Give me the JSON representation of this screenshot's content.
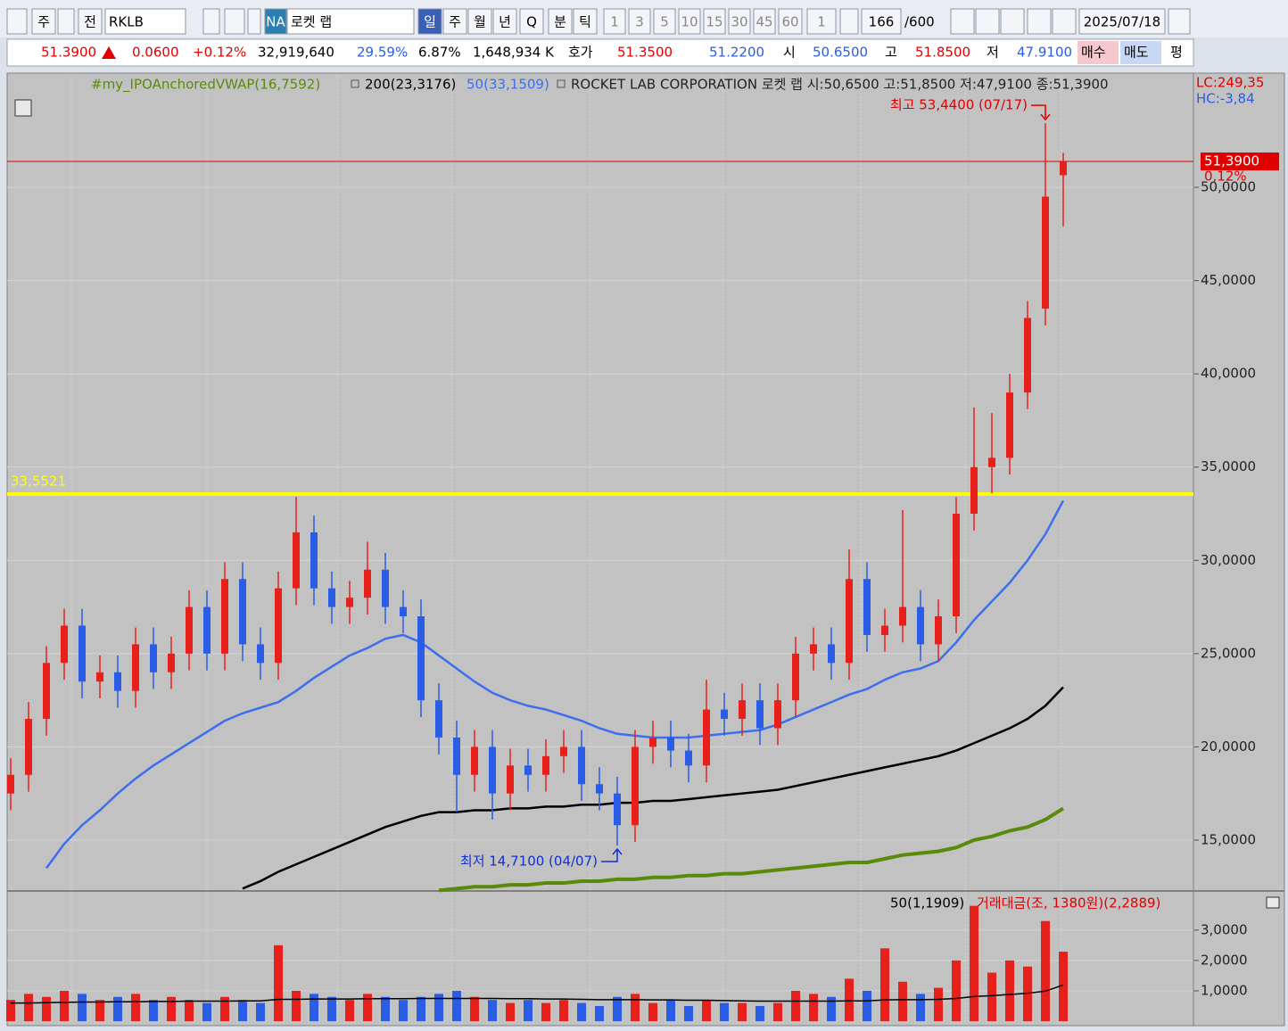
{
  "toolbar": {
    "items": [
      "주",
      "전",
      "RKLB",
      "NA",
      "로켓 랩",
      "일",
      "주",
      "월",
      "년",
      "Q",
      "분",
      "틱",
      "1",
      "3",
      "5",
      "10",
      "15",
      "30",
      "45",
      "60",
      "1",
      "166",
      "/600",
      "2025/07/18"
    ]
  },
  "quote_bar": {
    "items": [
      "51.3900",
      "0.0600",
      "+0.12%",
      "32,919,640",
      "29.59%",
      "6.87%",
      "1,648,934 K",
      "호가",
      "51.3500",
      "51.2200",
      "시",
      "50.6500",
      "고",
      "51.8500",
      "저",
      "47.9100",
      "매수",
      "매도",
      "평"
    ]
  },
  "chart_data": {
    "type": "candlestick",
    "grid": true,
    "up_color": "#e8201c",
    "down_color": "#2a5ce6",
    "open": [
      17.5,
      18.5,
      21.5,
      24.5,
      26.5,
      23.5,
      24.0,
      23.0,
      25.5,
      24.0,
      25.0,
      27.5,
      25.0,
      29.0,
      25.5,
      24.5,
      28.5,
      31.5,
      28.5,
      27.5,
      28.0,
      29.5,
      27.5,
      27.0,
      22.5,
      20.5,
      18.5,
      20.0,
      17.5,
      19.0,
      18.5,
      19.5,
      20.0,
      18.0,
      17.5,
      15.8,
      20.0,
      20.5,
      19.8,
      19.0,
      22.0,
      21.5,
      22.5,
      21.0,
      22.5,
      25.0,
      25.5,
      24.5,
      29.0,
      26.0,
      26.5,
      27.5,
      25.5,
      27.0,
      32.5,
      35.0,
      35.5,
      39.0,
      43.5,
      50.65
    ],
    "high": [
      19.4,
      22.4,
      25.4,
      27.4,
      27.4,
      24.9,
      24.9,
      26.4,
      26.4,
      25.9,
      28.4,
      28.4,
      29.9,
      29.9,
      26.4,
      29.4,
      33.4,
      32.4,
      29.4,
      28.9,
      31.0,
      30.4,
      28.4,
      27.9,
      23.4,
      21.4,
      20.9,
      20.9,
      19.9,
      19.9,
      20.4,
      20.9,
      20.9,
      18.9,
      18.4,
      20.9,
      21.4,
      21.4,
      20.7,
      23.6,
      22.9,
      23.4,
      23.4,
      23.4,
      25.9,
      26.4,
      26.4,
      30.6,
      29.9,
      27.4,
      32.7,
      28.4,
      27.9,
      33.4,
      38.2,
      37.9,
      40.0,
      43.9,
      53.44,
      51.85
    ],
    "low": [
      16.6,
      17.6,
      20.6,
      23.6,
      22.6,
      22.6,
      22.1,
      22.1,
      23.1,
      23.1,
      24.1,
      24.1,
      24.1,
      24.6,
      23.6,
      23.6,
      27.6,
      27.6,
      26.6,
      26.6,
      27.1,
      26.6,
      26.1,
      21.6,
      19.6,
      16.5,
      17.6,
      16.1,
      16.6,
      17.6,
      17.6,
      18.6,
      17.1,
      16.6,
      14.71,
      14.9,
      19.1,
      18.9,
      18.1,
      18.1,
      20.6,
      20.6,
      20.1,
      20.1,
      21.6,
      24.1,
      23.6,
      23.6,
      25.1,
      25.1,
      25.6,
      24.6,
      24.6,
      26.1,
      31.6,
      33.6,
      34.6,
      38.1,
      42.6,
      47.91
    ],
    "close": [
      18.5,
      21.5,
      24.5,
      26.5,
      23.5,
      24.0,
      23.0,
      25.5,
      24.0,
      25.0,
      27.5,
      25.0,
      29.0,
      25.5,
      24.5,
      28.5,
      31.5,
      28.5,
      27.5,
      28.0,
      29.5,
      27.5,
      27.0,
      22.5,
      20.5,
      18.5,
      20.0,
      17.5,
      19.0,
      18.5,
      19.5,
      20.0,
      18.0,
      17.5,
      15.8,
      20.0,
      20.5,
      19.8,
      19.0,
      22.0,
      21.5,
      22.5,
      21.0,
      22.5,
      25.0,
      25.5,
      24.5,
      29.0,
      26.0,
      26.5,
      27.5,
      25.5,
      27.0,
      32.5,
      35.0,
      35.5,
      39.0,
      43.0,
      49.5,
      51.39
    ],
    "overlays": [
      {
        "name": "#my_IPOAnchoredVWAP(16,7592)",
        "color": "#5a8a0a",
        "values": [
          null,
          null,
          null,
          null,
          null,
          null,
          null,
          null,
          null,
          null,
          null,
          null,
          null,
          null,
          null,
          null,
          null,
          null,
          null,
          null,
          null,
          null,
          null,
          null,
          12.3,
          12.4,
          12.5,
          12.5,
          12.6,
          12.6,
          12.7,
          12.7,
          12.8,
          12.8,
          12.9,
          12.9,
          13.0,
          13.0,
          13.1,
          13.1,
          13.2,
          13.2,
          13.3,
          13.4,
          13.5,
          13.6,
          13.7,
          13.8,
          13.8,
          14.0,
          14.2,
          14.3,
          14.4,
          14.6,
          15.0,
          15.2,
          15.5,
          15.7,
          16.1,
          16.7
        ]
      },
      {
        "name": "200(23,3176)",
        "color": "#000000",
        "values": [
          null,
          null,
          null,
          null,
          null,
          null,
          null,
          null,
          null,
          null,
          null,
          null,
          null,
          12.4,
          12.8,
          13.3,
          13.7,
          14.1,
          14.5,
          14.9,
          15.3,
          15.7,
          16.0,
          16.3,
          16.5,
          16.5,
          16.6,
          16.6,
          16.7,
          16.7,
          16.8,
          16.8,
          16.9,
          16.9,
          17.0,
          17.0,
          17.1,
          17.1,
          17.2,
          17.3,
          17.4,
          17.5,
          17.6,
          17.7,
          17.9,
          18.1,
          18.3,
          18.5,
          18.7,
          18.9,
          19.1,
          19.3,
          19.5,
          19.8,
          20.2,
          20.6,
          21.0,
          21.5,
          22.2,
          23.2
        ]
      },
      {
        "name": "50(33,1509)",
        "color": "#3c6ef0",
        "values": [
          null,
          null,
          13.5,
          14.8,
          15.8,
          16.6,
          17.5,
          18.3,
          19.0,
          19.6,
          20.2,
          20.8,
          21.4,
          21.8,
          22.1,
          22.4,
          23.0,
          23.7,
          24.3,
          24.9,
          25.3,
          25.8,
          26.0,
          25.6,
          24.9,
          24.2,
          23.5,
          22.9,
          22.5,
          22.2,
          22.0,
          21.7,
          21.4,
          21.0,
          20.7,
          20.6,
          20.5,
          20.5,
          20.5,
          20.6,
          20.7,
          20.8,
          20.9,
          21.2,
          21.6,
          22.0,
          22.4,
          22.8,
          23.1,
          23.6,
          24.0,
          24.2,
          24.6,
          25.6,
          26.8,
          27.8,
          28.8,
          30.0,
          31.4,
          33.2
        ]
      }
    ],
    "info": "ROCKET LAB CORPORATION  로켓 랩 시:50,6500 고:51,8500 저:47,9100 종:51,3900",
    "ylim": [
      12.32,
      56.03
    ],
    "yticks": [
      {
        "value": 15,
        "label": "15,0000"
      },
      {
        "value": 20,
        "label": "20,0000"
      },
      {
        "value": 25,
        "label": "25,0000"
      },
      {
        "value": 30,
        "label": "30,0000"
      },
      {
        "value": 35,
        "label": "35,0000"
      },
      {
        "value": 40,
        "label": "40,0000"
      },
      {
        "value": 45,
        "label": "45,0000"
      },
      {
        "value": 50,
        "label": "50,0000"
      }
    ],
    "price_line": {
      "value": 51.39,
      "label": "51,3900",
      "change_label": "0,12%",
      "color": "#e00000"
    },
    "level_line": {
      "value": 33.5521,
      "label": "33,5521",
      "color": "#ffff00"
    },
    "annotations": [
      {
        "text": "최고 53,4400 (07/17)",
        "value": 53.44,
        "color": "#e00000"
      },
      {
        "text": "최저 14,7100 (04/07)",
        "value": 14.71,
        "color": "#1030d0"
      }
    ],
    "corner_labels": [
      {
        "text": "LC:249,35",
        "color": "#e00000"
      },
      {
        "text": "HC:-3,84",
        "color": "#2a5ce6"
      }
    ],
    "volume": {
      "title": "거래대금(조, 1380원)(2,2889)",
      "values": [
        0.7,
        0.9,
        0.8,
        1.0,
        0.9,
        0.7,
        0.8,
        0.9,
        0.7,
        0.8,
        0.7,
        0.6,
        0.8,
        0.7,
        0.6,
        2.5,
        1.0,
        0.9,
        0.8,
        0.7,
        0.9,
        0.8,
        0.7,
        0.8,
        0.9,
        1.0,
        0.8,
        0.7,
        0.6,
        0.7,
        0.6,
        0.7,
        0.6,
        0.5,
        0.8,
        0.9,
        0.6,
        0.7,
        0.5,
        0.7,
        0.6,
        0.6,
        0.5,
        0.6,
        1.0,
        0.9,
        0.8,
        1.4,
        1.0,
        2.4,
        1.3,
        0.9,
        1.1,
        2.0,
        3.8,
        1.6,
        2.0,
        1.8,
        3.3,
        2.29
      ],
      "ma": {
        "name": "50(1,1909)",
        "color": "#000000",
        "values": [
          0.6,
          0.6,
          0.61,
          0.62,
          0.63,
          0.63,
          0.64,
          0.64,
          0.65,
          0.65,
          0.66,
          0.66,
          0.66,
          0.67,
          0.67,
          0.72,
          0.72,
          0.73,
          0.73,
          0.73,
          0.74,
          0.74,
          0.74,
          0.75,
          0.75,
          0.75,
          0.75,
          0.75,
          0.74,
          0.74,
          0.73,
          0.73,
          0.72,
          0.71,
          0.71,
          0.71,
          0.7,
          0.7,
          0.69,
          0.69,
          0.68,
          0.67,
          0.66,
          0.66,
          0.66,
          0.66,
          0.66,
          0.67,
          0.67,
          0.7,
          0.71,
          0.71,
          0.72,
          0.75,
          0.81,
          0.84,
          0.88,
          0.92,
          0.99,
          1.1909
        ]
      },
      "ylim": [
        0,
        4.26
      ],
      "yticks": [
        {
          "value": 1,
          "label": "1,0000"
        },
        {
          "value": 2,
          "label": "2,0000"
        },
        {
          "value": 3,
          "label": "3,0000"
        }
      ]
    }
  }
}
